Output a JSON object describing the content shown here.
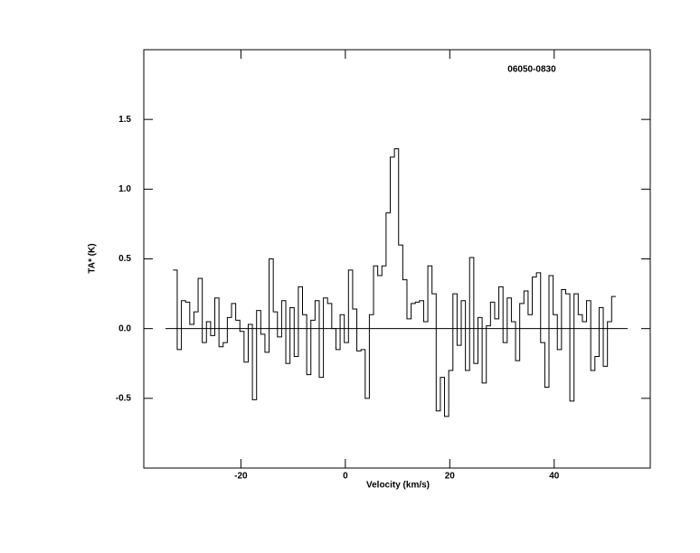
{
  "chart_data": {
    "type": "step",
    "annotation": "06050-0830",
    "xlabel": "Velocity (km/s)",
    "ylabel": "TA* (K)",
    "xlim": [
      -38.6,
      58.4
    ],
    "ylim": [
      -1.0,
      2.0
    ],
    "xticks": [
      -20,
      0,
      20,
      40
    ],
    "yticks": [
      -0.5,
      {
        "value": 0,
        "label": "0.0"
      },
      0.5,
      {
        "value": 1,
        "label": "1.0"
      },
      1.5
    ],
    "baseline": 0,
    "color": "#000000",
    "series": [
      {
        "x": [
          -32.6,
          -31.8,
          -31,
          -30.2,
          -29.4,
          -28.6,
          -27.8,
          -27,
          -26.2,
          -25.4,
          -24.6,
          -23.8,
          -23,
          -22.2,
          -21.4,
          -20.6,
          -19.8,
          -19,
          -18.2,
          -17.4,
          -16.6,
          -15.8,
          -15,
          -14.2,
          -13.4,
          -12.6,
          -11.8,
          -11,
          -10.2,
          -9.4,
          -8.6,
          -7.8,
          -7,
          -6.2,
          -5.4,
          -4.6,
          -3.8,
          -3,
          -2.2,
          -1.4,
          -0.6,
          0.2,
          1,
          1.8,
          2.6,
          3.4,
          4.2,
          5,
          5.8,
          6.6,
          7.4,
          8.2,
          9,
          9.8,
          10.6,
          11.4,
          12.2,
          13,
          13.8,
          14.6,
          15.4,
          16.2,
          17,
          17.8,
          18.6,
          19.4,
          20.2,
          21,
          21.8,
          22.6,
          23.4,
          24.2,
          25,
          25.8,
          26.6,
          27.4,
          28.2,
          29,
          29.8,
          30.6,
          31.4,
          32.2,
          33,
          33.8,
          34.6,
          35.4,
          36.2,
          37,
          37.8,
          38.6,
          39.4,
          40.2,
          41,
          41.8,
          42.6,
          43.4,
          44.2,
          45,
          45.8,
          46.6,
          47.4,
          48.2,
          49,
          49.8,
          50.6,
          51.4
        ],
        "values": [
          0.42,
          -0.15,
          0.2,
          0.19,
          0.03,
          0.12,
          0.36,
          -0.1,
          0.05,
          -0.05,
          0.22,
          -0.13,
          -0.1,
          0.08,
          0.18,
          0.06,
          -0.02,
          -0.24,
          0.03,
          -0.51,
          0.13,
          -0.04,
          -0.17,
          0.5,
          0.12,
          -0.06,
          0.2,
          -0.25,
          0.15,
          -0.2,
          0.3,
          0.1,
          -0.33,
          0.06,
          0.2,
          -0.35,
          0.22,
          0.18,
          0.0,
          -0.15,
          0.1,
          -0.1,
          0.42,
          0.14,
          -0.16,
          -0.15,
          -0.5,
          0.1,
          0.45,
          0.38,
          0.45,
          0.83,
          1.23,
          1.29,
          0.6,
          0.35,
          0.07,
          0.18,
          0.19,
          0.2,
          0.05,
          0.45,
          0.25,
          -0.59,
          -0.35,
          -0.63,
          -0.3,
          0.25,
          -0.12,
          0.2,
          -0.3,
          0.51,
          -0.25,
          0.08,
          -0.39,
          0.02,
          0.19,
          0.07,
          0.3,
          -0.1,
          0.22,
          0.05,
          -0.23,
          0.18,
          0.27,
          0.1,
          0.37,
          0.4,
          -0.1,
          -0.42,
          0.38,
          0.1,
          -0.15,
          0.28,
          0.25,
          -0.52,
          0.25,
          0.1,
          0.05,
          0.2,
          -0.3,
          -0.2,
          0.15,
          -0.27,
          0.05,
          0.23
        ]
      }
    ]
  }
}
